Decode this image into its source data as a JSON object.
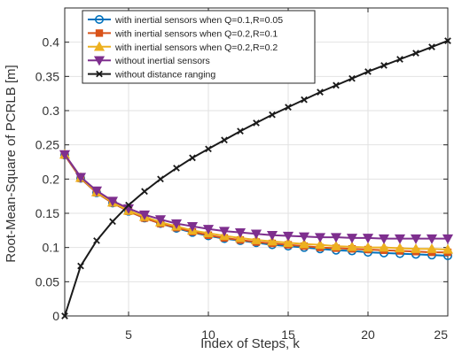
{
  "chart_data": {
    "type": "line",
    "title": "",
    "xlabel": "Index of Steps, k",
    "ylabel": "Root-Mean-Square of PCRLB [m]",
    "xlim": [
      1,
      25
    ],
    "ylim": [
      0,
      0.45
    ],
    "x_ticks": [
      5,
      10,
      15,
      20,
      25
    ],
    "y_ticks": [
      0,
      0.05,
      0.1,
      0.15,
      0.2,
      0.25,
      0.3,
      0.35,
      0.4
    ],
    "x_tick_labels": [
      "5",
      "10",
      "15",
      "20",
      "25"
    ],
    "y_tick_labels": [
      "0",
      "0.05",
      "0.1",
      "0.15",
      "0.2",
      "0.25",
      "0.3",
      "0.35",
      "0.4"
    ],
    "grid": true,
    "legend_position": "top-left",
    "x": [
      1,
      2,
      3,
      4,
      5,
      6,
      7,
      8,
      9,
      10,
      11,
      12,
      13,
      14,
      15,
      16,
      17,
      18,
      19,
      20,
      21,
      22,
      23,
      24,
      25
    ],
    "series": [
      {
        "name": "with inertial sensors when  Q=0.1,R=0.05",
        "color": "#0072BD",
        "marker": "circle",
        "values": [
          0.235,
          0.201,
          0.18,
          0.165,
          0.153,
          0.143,
          0.135,
          0.128,
          0.122,
          0.117,
          0.113,
          0.11,
          0.107,
          0.104,
          0.102,
          0.1,
          0.098,
          0.096,
          0.095,
          0.093,
          0.092,
          0.091,
          0.09,
          0.089,
          0.088
        ]
      },
      {
        "name": "with inertial sensors when  Q=0.2,R=0.1",
        "color": "#D95319",
        "marker": "square",
        "values": [
          0.235,
          0.201,
          0.18,
          0.165,
          0.153,
          0.143,
          0.135,
          0.129,
          0.123,
          0.118,
          0.114,
          0.111,
          0.108,
          0.106,
          0.104,
          0.102,
          0.1,
          0.099,
          0.098,
          0.097,
          0.096,
          0.095,
          0.094,
          0.093,
          0.093
        ]
      },
      {
        "name": "with inertial sensors when  Q=0.2,R=0.2",
        "color": "#EDB120",
        "marker": "triangle-up",
        "values": [
          0.236,
          0.202,
          0.181,
          0.166,
          0.154,
          0.145,
          0.137,
          0.131,
          0.125,
          0.121,
          0.117,
          0.114,
          0.111,
          0.109,
          0.107,
          0.105,
          0.104,
          0.102,
          0.101,
          0.1,
          0.1,
          0.099,
          0.098,
          0.098,
          0.097
        ]
      },
      {
        "name": "without inertial sensors",
        "color": "#7E2F8E",
        "marker": "triangle-down",
        "values": [
          0.236,
          0.203,
          0.183,
          0.168,
          0.157,
          0.148,
          0.141,
          0.135,
          0.131,
          0.127,
          0.124,
          0.122,
          0.12,
          0.118,
          0.117,
          0.116,
          0.115,
          0.115,
          0.114,
          0.114,
          0.113,
          0.113,
          0.113,
          0.113,
          0.113
        ]
      },
      {
        "name": "without distance ranging",
        "color": "#1a1a1a",
        "marker": "x",
        "values": [
          0.0,
          0.073,
          0.11,
          0.138,
          0.162,
          0.182,
          0.2,
          0.216,
          0.231,
          0.244,
          0.257,
          0.27,
          0.282,
          0.294,
          0.305,
          0.316,
          0.327,
          0.337,
          0.347,
          0.357,
          0.366,
          0.375,
          0.384,
          0.393,
          0.402
        ]
      }
    ]
  }
}
